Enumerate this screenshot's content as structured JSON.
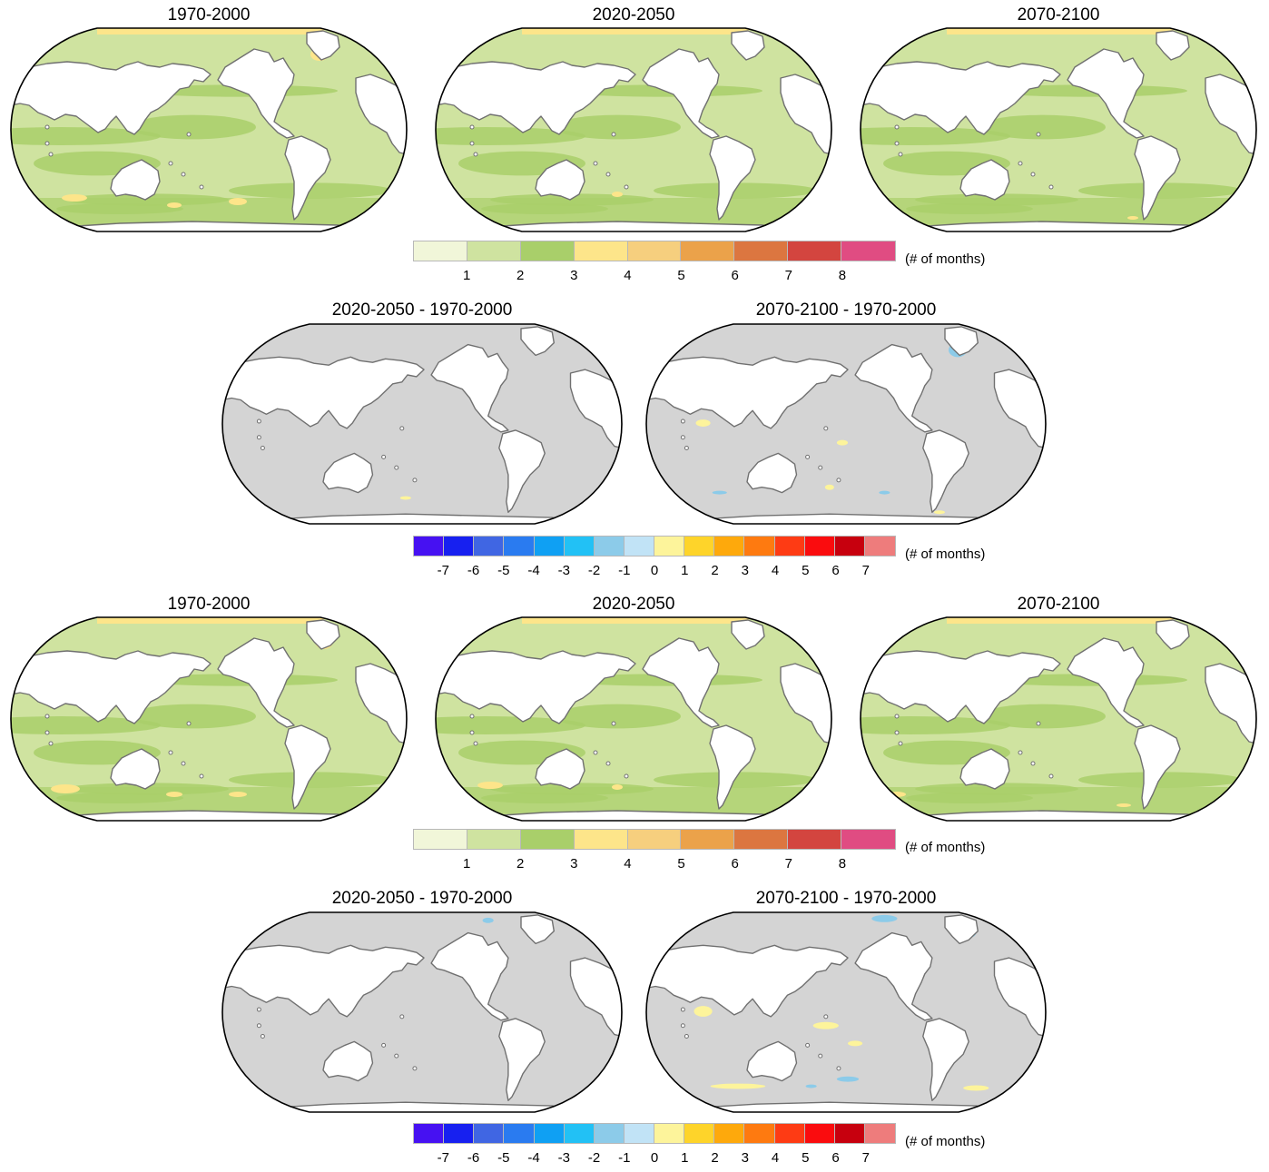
{
  "figure": {
    "unit_label": "(# of months)",
    "abs_colorbar": {
      "colors": [
        "#f1f6d9",
        "#cfe3a0",
        "#a9cf6a",
        "#fde58a",
        "#f6cf7e",
        "#eba24a",
        "#dc7640",
        "#d3453f",
        "#e04c82"
      ],
      "ticks": [
        "1",
        "2",
        "3",
        "4",
        "5",
        "6",
        "7",
        "8"
      ]
    },
    "diff_colorbar": {
      "colors": [
        "#4611f2",
        "#1720f0",
        "#4066e3",
        "#2a7bf0",
        "#0fa0f3",
        "#22c1f5",
        "#8ccbe9",
        "#c1e3f6",
        "#fdf49b",
        "#fed42a",
        "#fea90c",
        "#fe7a10",
        "#fe3b14",
        "#fa0c0e",
        "#c7000e",
        "#ee7c7c"
      ],
      "ticks": [
        "-7",
        "-6",
        "-5",
        "-4",
        "-3",
        "-2",
        "-1",
        "0",
        "1",
        "2",
        "3",
        "4",
        "5",
        "6",
        "7"
      ]
    },
    "ocean_colors": {
      "abs_base": "#cfe3a0",
      "abs_band": "#a9cf6a",
      "abs_hot": "#fde58a",
      "diff_base": "#d4d4d4",
      "diff_pos": "#fdf49b",
      "diff_neg": "#8ccbe9"
    },
    "block1": {
      "abs_titles": [
        "1970-2000",
        "2020-2050",
        "2070-2100"
      ],
      "diff_titles": [
        "2020-2050 - 1970-2000",
        "2070-2100 - 1970-2000"
      ]
    },
    "block2": {
      "abs_titles": [
        "1970-2000",
        "2020-2050",
        "2070-2100"
      ],
      "diff_titles": [
        "2020-2050 - 1970-2000",
        "2070-2100 - 1970-2000"
      ]
    }
  }
}
